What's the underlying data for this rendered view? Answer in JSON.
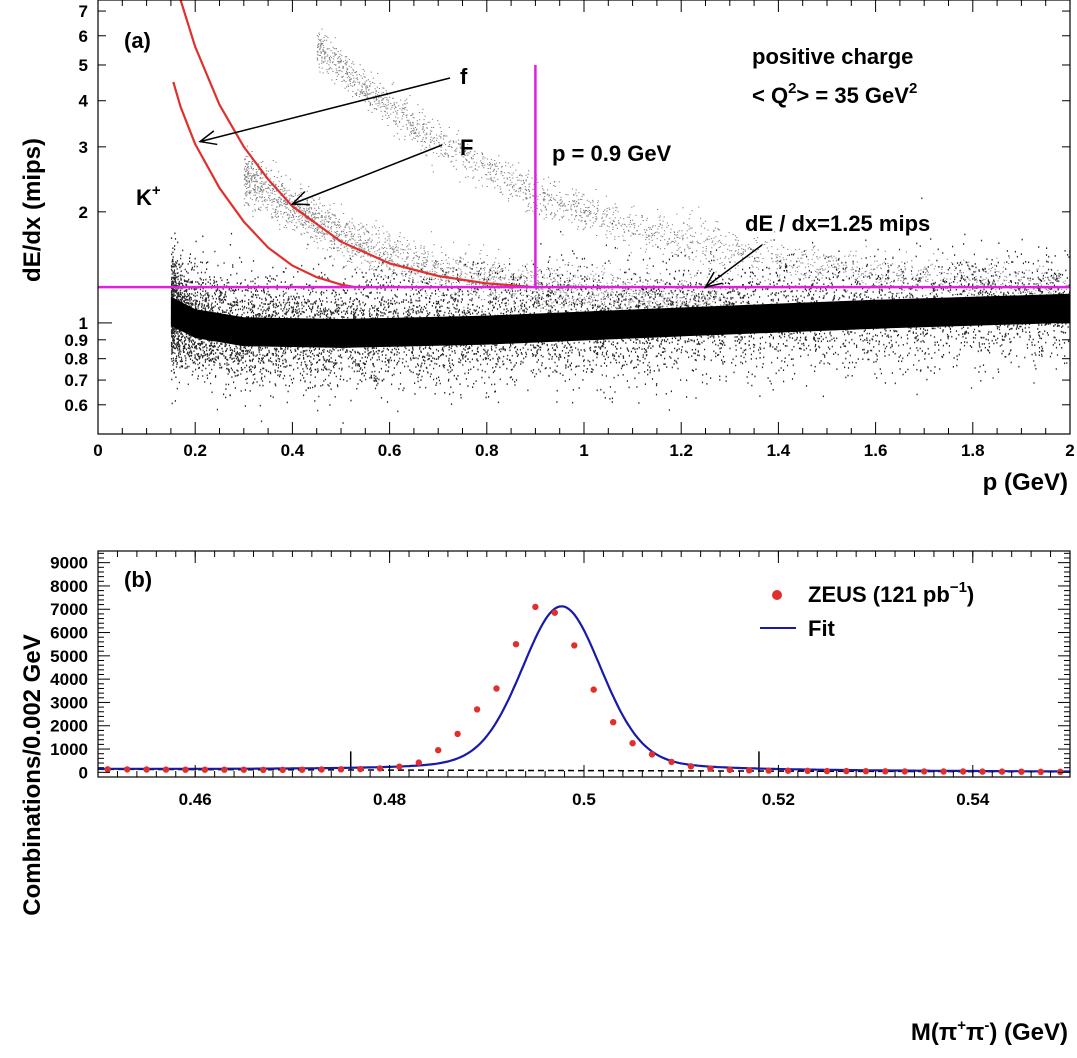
{
  "chart_data": [
    {
      "type": "scatter",
      "panel_label": "(a)",
      "xlabel": "p (GeV)",
      "ylabel": "dE/dx (mips)",
      "xlim": [
        0,
        2
      ],
      "ylim": [
        0.5,
        7.5
      ],
      "y_scale": "log",
      "x_ticks": [
        "0",
        "0.2",
        "0.4",
        "0.6",
        "0.8",
        "1",
        "1.2",
        "1.4",
        "1.6",
        "1.8",
        "2"
      ],
      "y_ticks": [
        {
          "value": 0.6,
          "label": "0.6"
        },
        {
          "value": 0.7,
          "label": "0.7"
        },
        {
          "value": 0.8,
          "label": "0.8"
        },
        {
          "value": 0.9,
          "label": "0.9"
        },
        {
          "value": 1,
          "label": "1"
        },
        {
          "value": 2,
          "label": "2"
        },
        {
          "value": 3,
          "label": "3"
        },
        {
          "value": 4,
          "label": "4"
        },
        {
          "value": 5,
          "label": "5"
        },
        {
          "value": 6,
          "label": "6"
        },
        {
          "value": 7,
          "label": "7"
        }
      ],
      "annotations": {
        "charge": "positive charge",
        "q2_prefix": "< Q",
        "q2_sup": "2",
        "q2_mid": "> = 35 GeV",
        "q2_sup2": "2",
        "kaon": "K",
        "kaon_sup": "+",
        "curve_lower_label": "f",
        "curve_upper_label": "F",
        "p_cut": "p = 0.9 GeV",
        "dedx_cut": "dE / dx=1.25 mips"
      },
      "cuts": {
        "p_cut": 0.9,
        "dedx_cut": 1.25
      },
      "band_colors": {
        "points": "#000000",
        "curves": "#e0302e",
        "cuts": "#e020e0"
      },
      "curves": [
        {
          "label": "f",
          "points": [
            [
              0.155,
              4.5
            ],
            [
              0.17,
              3.85
            ],
            [
              0.2,
              3.05
            ],
            [
              0.25,
              2.32
            ],
            [
              0.3,
              1.88
            ],
            [
              0.35,
              1.6
            ],
            [
              0.4,
              1.43
            ],
            [
              0.45,
              1.33
            ],
            [
              0.5,
              1.27
            ],
            [
              0.53,
              1.25
            ]
          ]
        },
        {
          "label": "F",
          "points": [
            [
              0.17,
              7.5
            ],
            [
              0.2,
              5.6
            ],
            [
              0.25,
              3.9
            ],
            [
              0.3,
              3.0
            ],
            [
              0.35,
              2.45
            ],
            [
              0.4,
              2.07
            ],
            [
              0.5,
              1.66
            ],
            [
              0.6,
              1.45
            ],
            [
              0.7,
              1.34
            ],
            [
              0.8,
              1.28
            ],
            [
              0.9,
              1.25
            ]
          ]
        }
      ],
      "bands": [
        {
          "label": "pions",
          "x_min": 0.15,
          "x_max": 2.0,
          "center": [
            [
              0.15,
              1.08
            ],
            [
              0.2,
              1.0
            ],
            [
              0.3,
              0.95
            ],
            [
              0.5,
              0.94
            ],
            [
              0.8,
              0.96
            ],
            [
              1.2,
              1.01
            ],
            [
              1.6,
              1.06
            ],
            [
              2.0,
              1.1
            ]
          ],
          "width": 0.16
        },
        {
          "label": "kaons",
          "x_min": 0.3,
          "x_max": 1.3,
          "center": [
            [
              0.3,
              2.5
            ],
            [
              0.4,
              2.05
            ],
            [
              0.5,
              1.72
            ],
            [
              0.6,
              1.52
            ],
            [
              0.7,
              1.38
            ],
            [
              0.8,
              1.3
            ],
            [
              1.0,
              1.2
            ],
            [
              1.3,
              1.12
            ]
          ],
          "width": 0.07
        },
        {
          "label": "protons",
          "x_min": 0.45,
          "x_max": 2.0,
          "center": [
            [
              0.45,
              5.6
            ],
            [
              0.55,
              4.3
            ],
            [
              0.65,
              3.4
            ],
            [
              0.75,
              2.8
            ],
            [
              0.9,
              2.2
            ],
            [
              1.1,
              1.8
            ],
            [
              1.4,
              1.47
            ],
            [
              1.7,
              1.32
            ],
            [
              2.0,
              1.24
            ]
          ],
          "width": 0.06
        }
      ]
    },
    {
      "type": "line",
      "panel_label": "(b)",
      "xlabel_prefix": "M(π",
      "xlabel_sup1": "+",
      "xlabel_mid": "π",
      "xlabel_sup2": "-",
      "xlabel_suffix": ") (GeV)",
      "ylabel": "Combinations/0.002 GeV",
      "xlim": [
        0.45,
        0.55
      ],
      "ylim": [
        -200,
        9500
      ],
      "x_ticks": [
        {
          "value": 0.46,
          "label": "0.46"
        },
        {
          "value": 0.48,
          "label": "0.48"
        },
        {
          "value": 0.5,
          "label": "0.5"
        },
        {
          "value": 0.52,
          "label": "0.52"
        },
        {
          "value": 0.54,
          "label": "0.54"
        }
      ],
      "y_ticks": [
        {
          "value": 0,
          "label": "0"
        },
        {
          "value": 1000,
          "label": "1000"
        },
        {
          "value": 2000,
          "label": "2000"
        },
        {
          "value": 3000,
          "label": "3000"
        },
        {
          "value": 4000,
          "label": "4000"
        },
        {
          "value": 5000,
          "label": "5000"
        },
        {
          "value": 6000,
          "label": "6000"
        },
        {
          "value": 7000,
          "label": "7000"
        },
        {
          "value": 8000,
          "label": "8000"
        },
        {
          "value": 9000,
          "label": "9000"
        }
      ],
      "legend": {
        "position": "top-right",
        "data_label": "ZEUS (121 pb",
        "data_label_sup": "−1",
        "data_label_end": ")",
        "fit_label": "Fit"
      },
      "colors": {
        "data": "#e0302e",
        "fit": "#1a1aa8",
        "background": "#000000"
      },
      "signal_window": [
        0.476,
        0.518
      ],
      "fit": {
        "peak_x": 0.4977,
        "amplitude": 7050,
        "sigma": 0.0041,
        "background_start": 130,
        "background_end": 20
      },
      "series": [
        {
          "name": "ZEUS (121 pb−1)",
          "x": [
            0.451,
            0.453,
            0.455,
            0.457,
            0.459,
            0.461,
            0.463,
            0.465,
            0.467,
            0.469,
            0.471,
            0.473,
            0.475,
            0.477,
            0.479,
            0.481,
            0.483,
            0.485,
            0.487,
            0.489,
            0.491,
            0.493,
            0.495,
            0.497,
            0.499,
            0.501,
            0.503,
            0.505,
            0.507,
            0.509,
            0.511,
            0.513,
            0.515,
            0.517,
            0.519,
            0.521,
            0.523,
            0.525,
            0.527,
            0.529,
            0.531,
            0.533,
            0.535,
            0.537,
            0.539,
            0.541,
            0.543,
            0.545,
            0.547,
            0.549
          ],
          "values": [
            130,
            125,
            120,
            118,
            115,
            112,
            115,
            112,
            110,
            110,
            115,
            120,
            130,
            140,
            170,
            240,
            420,
            950,
            1650,
            2700,
            3600,
            5500,
            7100,
            6850,
            5450,
            3550,
            2150,
            1250,
            770,
            450,
            260,
            160,
            110,
            85,
            75,
            70,
            65,
            55,
            55,
            50,
            45,
            40,
            40,
            35,
            35,
            30,
            30,
            28,
            25,
            25
          ]
        },
        {
          "name": "Fit",
          "type": "curve"
        }
      ]
    }
  ]
}
